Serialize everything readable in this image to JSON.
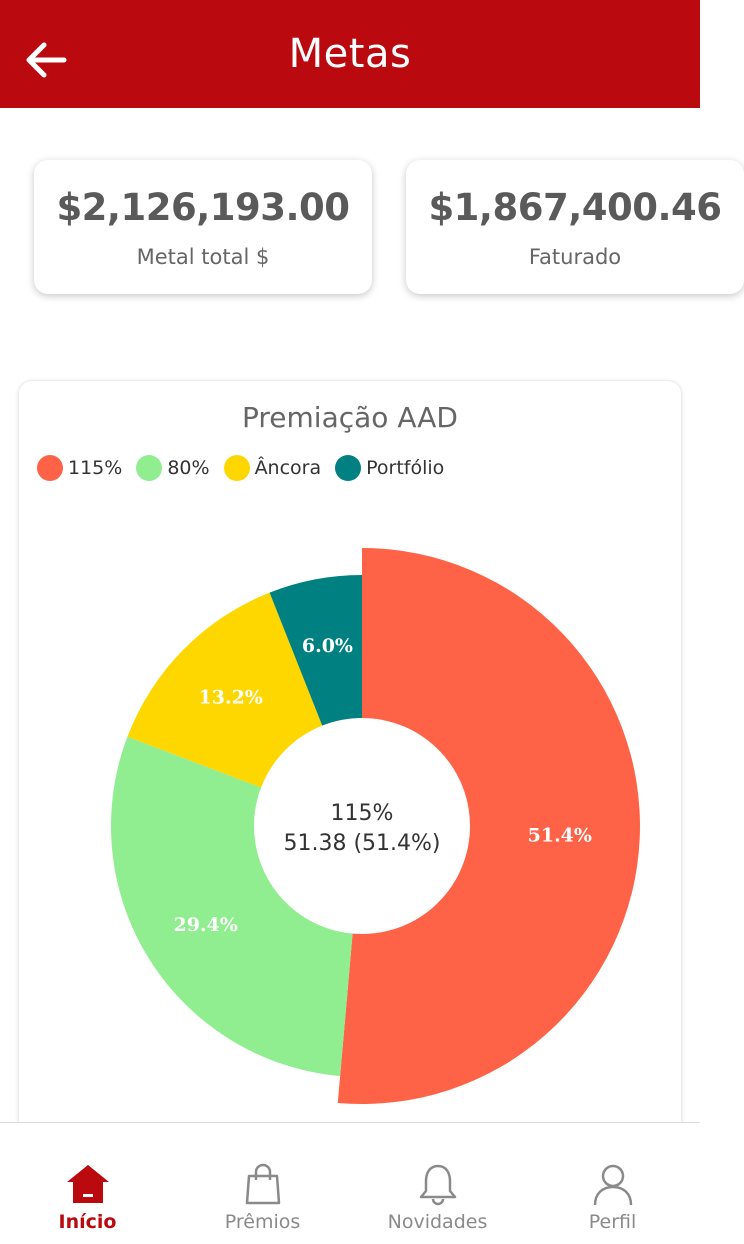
{
  "header": {
    "title": "Metas"
  },
  "cards": [
    {
      "value": "$2,126,193.00",
      "label": "Metal total $"
    },
    {
      "value": "$1,867,400.46",
      "label": "Faturado"
    }
  ],
  "chart": {
    "title": "Premiação AAD",
    "center_label": "115%",
    "center_value": "51.38 (51.4%)"
  },
  "chart_data": {
    "type": "pie",
    "title": "Premiação AAD",
    "categories": [
      "115%",
      "80%",
      "Âncora",
      "Portfólio"
    ],
    "values": [
      51.38,
      29.4,
      13.2,
      6.0
    ],
    "labels": [
      "51.4%",
      "29.4%",
      "13.2%",
      "6.0%"
    ],
    "colors": [
      "#ff6347",
      "#90ee90",
      "#ffd700",
      "#008080"
    ],
    "legend": "top-left",
    "highlighted": "115%"
  },
  "tabs": [
    {
      "label": "Início",
      "icon": "home-icon",
      "active": true
    },
    {
      "label": "Prêmios",
      "icon": "shopping-bag-icon",
      "active": false
    },
    {
      "label": "Novidades",
      "icon": "bell-icon",
      "active": false
    },
    {
      "label": "Perfil",
      "icon": "user-icon",
      "active": false
    }
  ],
  "colors": {
    "brand": "#bb0a0f",
    "active_tab": "#bb0a0f"
  }
}
